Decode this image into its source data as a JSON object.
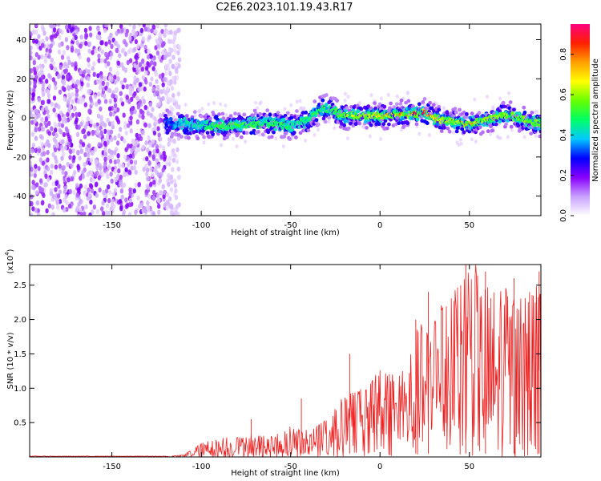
{
  "title": "C2E6.2023.101.19.43.R17",
  "chart_data": [
    {
      "type": "heatmap",
      "xlabel": "Height of straight line (km)",
      "ylabel": "Frequency (Hz)",
      "xlim": [
        -196,
        90
      ],
      "ylim": [
        -50,
        48
      ],
      "x_ticks": [
        -150,
        -100,
        -50,
        0,
        50
      ],
      "y_ticks": [
        -40,
        -20,
        0,
        20,
        40
      ],
      "colorbar": {
        "label": "Normalized spectral amplitude",
        "range": [
          0,
          0.95
        ],
        "ticks": [
          0.0,
          0.2,
          0.4,
          0.6,
          0.8
        ],
        "colors": [
          "#ffffff",
          "#c8a0ff",
          "#8800ff",
          "#0000ff",
          "#00c8ff",
          "#00ff66",
          "#66ff00",
          "#ffff00",
          "#ffa000",
          "#ff2000",
          "#ff0080"
        ]
      },
      "noise_region_x": [
        -196,
        -120
      ],
      "trace": {
        "x": [
          -120,
          -110,
          -100,
          -90,
          -80,
          -70,
          -60,
          -50,
          -45,
          -40,
          -35,
          -30,
          -25,
          -20,
          -10,
          0,
          10,
          20,
          25,
          30,
          40,
          50,
          60,
          70,
          80,
          90
        ],
        "y": [
          -3,
          -3,
          -4,
          -4,
          -4,
          -3,
          -3,
          -4,
          -3,
          -1,
          3,
          5,
          3,
          1,
          1,
          1,
          2,
          2,
          3,
          0,
          -2,
          -3,
          -1,
          2,
          -1,
          -3
        ],
        "peak_amplitude": [
          0.3,
          0.4,
          0.45,
          0.5,
          0.5,
          0.5,
          0.5,
          0.45,
          0.45,
          0.45,
          0.5,
          0.45,
          0.5,
          0.6,
          0.65,
          0.7,
          0.75,
          0.85,
          0.85,
          0.7,
          0.6,
          0.75,
          0.6,
          0.6,
          0.6,
          0.55
        ]
      }
    },
    {
      "type": "line",
      "xlabel": "Height of straight line (km)",
      "ylabel": "SNR (10 * v/v)",
      "y_scale_label": "(x10",
      "y_scale_exp": "4",
      "y_scale_suffix": ")",
      "xlim": [
        -196,
        90
      ],
      "ylim": [
        0,
        2.8
      ],
      "x_ticks": [
        -150,
        -100,
        -50,
        0,
        50
      ],
      "y_ticks": [
        0.5,
        1.0,
        1.5,
        2.0,
        2.5
      ],
      "color": "#ee2222",
      "envelope": {
        "x": [
          -196,
          -120,
          -110,
          -100,
          -90,
          -80,
          -70,
          -60,
          -50,
          -40,
          -30,
          -20,
          -10,
          0,
          10,
          20,
          30,
          40,
          50,
          60,
          70,
          80,
          90
        ],
        "y": [
          0.01,
          0.01,
          0.03,
          0.2,
          0.28,
          0.3,
          0.33,
          0.3,
          0.45,
          0.4,
          0.55,
          0.9,
          1.0,
          1.3,
          1.2,
          1.9,
          2.1,
          2.4,
          2.9,
          2.6,
          2.5,
          2.3,
          2.6
        ]
      },
      "spikes": [
        {
          "x": -100,
          "y": 0.2
        },
        {
          "x": -72,
          "y": 0.55
        },
        {
          "x": -44,
          "y": 0.85
        },
        {
          "x": -17,
          "y": 1.5
        },
        {
          "x": 20,
          "y": 2.0
        },
        {
          "x": 27,
          "y": 2.4
        },
        {
          "x": 48,
          "y": 2.8
        },
        {
          "x": 59,
          "y": 2.7
        },
        {
          "x": 75,
          "y": 2.6
        },
        {
          "x": 89,
          "y": 2.7
        }
      ]
    }
  ]
}
